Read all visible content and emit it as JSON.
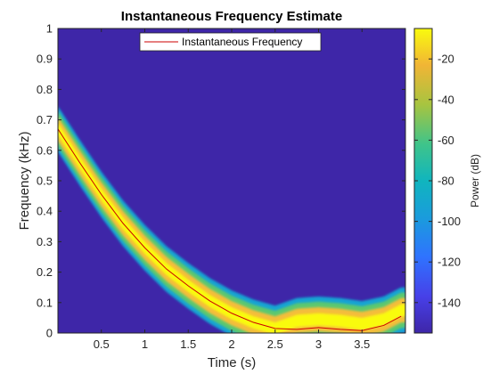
{
  "chart_data": {
    "type": "heatmap",
    "title": "Instantaneous Frequency Estimate",
    "xlabel": "Time (s)",
    "ylabel": "Frequency (kHz)",
    "xlim": [
      0,
      4
    ],
    "ylim": [
      0,
      1
    ],
    "xticks": [
      0.5,
      1,
      1.5,
      2,
      2.5,
      3,
      3.5
    ],
    "xtick_labels": [
      "0.5",
      "1",
      "1.5",
      "2",
      "2.5",
      "3",
      "3.5"
    ],
    "yticks": [
      0,
      0.1,
      0.2,
      0.3,
      0.4,
      0.5,
      0.6,
      0.7,
      0.8,
      0.9,
      1
    ],
    "ytick_labels": [
      "0",
      "0.1",
      "0.2",
      "0.3",
      "0.4",
      "0.5",
      "0.6",
      "0.7",
      "0.8",
      "0.9",
      "1"
    ],
    "colorbar": {
      "label": "Power (dB)",
      "range": [
        -155,
        -5
      ],
      "ticks": [
        -20,
        -40,
        -60,
        -80,
        -100,
        -120,
        -140
      ],
      "tick_labels": [
        "-20",
        "-40",
        "-60",
        "-80",
        "-100",
        "-120",
        "-140"
      ],
      "colormap": "parula"
    },
    "legend": {
      "entries": [
        "Instantaneous Frequency"
      ],
      "location": "top-center"
    },
    "series": [
      {
        "name": "Instantaneous Frequency",
        "color": "#cc0000",
        "x": [
          0.0,
          0.25,
          0.5,
          0.75,
          1.0,
          1.25,
          1.5,
          1.75,
          2.0,
          2.25,
          2.5,
          2.75,
          3.0,
          3.25,
          3.5,
          3.75,
          3.95
        ],
        "y": [
          0.67,
          0.56,
          0.455,
          0.36,
          0.28,
          0.21,
          0.155,
          0.105,
          0.065,
          0.035,
          0.015,
          0.012,
          0.018,
          0.012,
          0.008,
          0.025,
          0.055
        ]
      }
    ],
    "ridge": {
      "x": [
        0.0,
        0.25,
        0.5,
        0.75,
        1.0,
        1.25,
        1.5,
        1.75,
        2.0,
        2.25,
        2.5,
        2.75,
        3.0,
        3.25,
        3.5,
        3.75,
        3.95
      ],
      "y": [
        0.67,
        0.56,
        0.455,
        0.36,
        0.28,
        0.21,
        0.155,
        0.105,
        0.065,
        0.035,
        0.015,
        0.04,
        0.045,
        0.04,
        0.03,
        0.045,
        0.075
      ]
    }
  },
  "colors": {
    "background": "#3e26a8",
    "band_outer": "#12a4d3",
    "band_mid": "#5cc86f",
    "band_inner": "#f4bd3a",
    "band_core": "#f9fb0e",
    "line": "#cc0000",
    "axis": "#262626"
  }
}
